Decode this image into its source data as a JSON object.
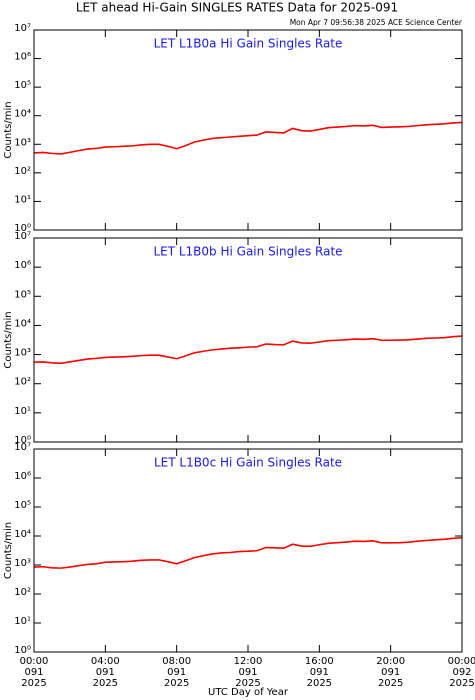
{
  "title": "LET ahead Hi-Gain SINGLES RATES Data for 2025-091",
  "subtitle": "Mon Apr  7 09:56:38 2025 ACE Science Center",
  "xlabel": "UTC Day of Year",
  "chart_data": [
    {
      "type": "line",
      "title": "LET L1B0a Hi Gain Singles Rate",
      "ylabel": "Counts/min",
      "color": "#ff0000",
      "log_y": true,
      "x": [
        0,
        0.5,
        1,
        1.5,
        2,
        2.5,
        3,
        3.5,
        4,
        4.5,
        5,
        5.5,
        6,
        6.5,
        7,
        7.5,
        8,
        8.5,
        9,
        9.5,
        10,
        10.5,
        11,
        11.5,
        12,
        12.5,
        13,
        13.5,
        14,
        14.5,
        15,
        15.5,
        16,
        16.5,
        17,
        17.5,
        18,
        18.5,
        19,
        19.5,
        20,
        20.5,
        21,
        21.5,
        22,
        22.5,
        23,
        23.5,
        24
      ],
      "values": [
        500,
        520,
        480,
        460,
        520,
        600,
        680,
        720,
        800,
        820,
        850,
        880,
        950,
        1000,
        1000,
        850,
        700,
        900,
        1200,
        1400,
        1600,
        1700,
        1800,
        1900,
        2000,
        2100,
        2700,
        2600,
        2500,
        3600,
        3000,
        2900,
        3300,
        3800,
        4000,
        4200,
        4500,
        4400,
        4600,
        3900,
        4000,
        4100,
        4200,
        4500,
        4800,
        5000,
        5200,
        5600,
        5800
      ],
      "xlim": [
        0,
        24
      ],
      "xticks": [
        0,
        4,
        8,
        12,
        16,
        20,
        24
      ],
      "ylim": [
        1,
        10000000
      ],
      "yticks": [
        {
          "value": 1,
          "label": "10⁰"
        },
        {
          "value": 10,
          "label": "10¹"
        },
        {
          "value": 100,
          "label": "10²"
        },
        {
          "value": 1000,
          "label": "10³"
        },
        {
          "value": 10000,
          "label": "10⁴"
        },
        {
          "value": 100000,
          "label": "10⁵"
        },
        {
          "value": 1000000,
          "label": "10⁶"
        },
        {
          "value": 10000000,
          "label": "10⁷"
        }
      ]
    },
    {
      "type": "line",
      "title": "LET L1B0b Hi Gain Singles Rate",
      "ylabel": "Counts/min",
      "color": "#ff0000",
      "log_y": true,
      "x": [
        0,
        0.5,
        1,
        1.5,
        2,
        2.5,
        3,
        3.5,
        4,
        4.5,
        5,
        5.5,
        6,
        6.5,
        7,
        7.5,
        8,
        8.5,
        9,
        9.5,
        10,
        10.5,
        11,
        11.5,
        12,
        12.5,
        13,
        13.5,
        14,
        14.5,
        15,
        15.5,
        16,
        16.5,
        17,
        17.5,
        18,
        18.5,
        19,
        19.5,
        20,
        20.5,
        21,
        21.5,
        22,
        22.5,
        23,
        23.5,
        24
      ],
      "values": [
        550,
        560,
        520,
        500,
        560,
        630,
        700,
        740,
        800,
        820,
        840,
        870,
        920,
        950,
        950,
        830,
        720,
        900,
        1150,
        1300,
        1450,
        1550,
        1650,
        1700,
        1800,
        1850,
        2300,
        2200,
        2150,
        2900,
        2500,
        2450,
        2700,
        3000,
        3100,
        3200,
        3400,
        3350,
        3500,
        3100,
        3100,
        3150,
        3200,
        3400,
        3600,
        3700,
        3800,
        4100,
        4300
      ],
      "xlim": [
        0,
        24
      ],
      "xticks": [
        0,
        4,
        8,
        12,
        16,
        20,
        24
      ],
      "ylim": [
        1,
        10000000
      ],
      "yticks": [
        {
          "value": 1,
          "label": "10⁰"
        },
        {
          "value": 10,
          "label": "10¹"
        },
        {
          "value": 100,
          "label": "10²"
        },
        {
          "value": 1000,
          "label": "10³"
        },
        {
          "value": 10000,
          "label": "10⁴"
        },
        {
          "value": 100000,
          "label": "10⁵"
        },
        {
          "value": 1000000,
          "label": "10⁶"
        },
        {
          "value": 10000000,
          "label": "10⁷"
        }
      ]
    },
    {
      "type": "line",
      "title": "LET L1B0c Hi Gain Singles Rate",
      "ylabel": "Counts/min",
      "color": "#ff0000",
      "log_y": true,
      "x": [
        0,
        0.5,
        1,
        1.5,
        2,
        2.5,
        3,
        3.5,
        4,
        4.5,
        5,
        5.5,
        6,
        6.5,
        7,
        7.5,
        8,
        8.5,
        9,
        9.5,
        10,
        10.5,
        11,
        11.5,
        12,
        12.5,
        13,
        13.5,
        14,
        14.5,
        15,
        15.5,
        16,
        16.5,
        17,
        17.5,
        18,
        18.5,
        19,
        19.5,
        20,
        20.5,
        21,
        21.5,
        22,
        22.5,
        23,
        23.5,
        24
      ],
      "values": [
        850,
        870,
        800,
        780,
        850,
        950,
        1050,
        1100,
        1250,
        1280,
        1300,
        1350,
        1450,
        1500,
        1500,
        1300,
        1100,
        1400,
        1800,
        2100,
        2400,
        2600,
        2700,
        2900,
        3000,
        3100,
        4000,
        3900,
        3800,
        5200,
        4500,
        4400,
        5000,
        5600,
        5900,
        6200,
        6600,
        6500,
        6800,
        5800,
        5800,
        5900,
        6100,
        6600,
        7000,
        7400,
        7700,
        8300,
        8700
      ],
      "xlim": [
        0,
        24
      ],
      "xticks": [
        0,
        4,
        8,
        12,
        16,
        20,
        24
      ],
      "xtick_labels": [
        [
          "00:00",
          "091",
          "2025"
        ],
        [
          "04:00",
          "091",
          "2025"
        ],
        [
          "08:00",
          "091",
          "2025"
        ],
        [
          "12:00",
          "091",
          "2025"
        ],
        [
          "16:00",
          "091",
          "2025"
        ],
        [
          "20:00",
          "091",
          "2025"
        ],
        [
          "00:00",
          "092",
          "2025"
        ]
      ],
      "ylim": [
        1,
        10000000
      ],
      "yticks": [
        {
          "value": 1,
          "label": "10⁰"
        },
        {
          "value": 10,
          "label": "10¹"
        },
        {
          "value": 100,
          "label": "10²"
        },
        {
          "value": 1000,
          "label": "10³"
        },
        {
          "value": 10000,
          "label": "10⁴"
        },
        {
          "value": 100000,
          "label": "10⁵"
        },
        {
          "value": 1000000,
          "label": "10⁶"
        },
        {
          "value": 10000000,
          "label": "10⁷"
        }
      ]
    }
  ]
}
